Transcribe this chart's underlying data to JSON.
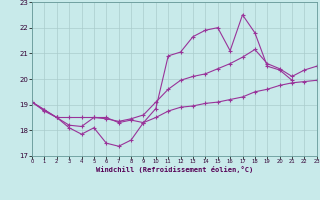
{
  "xlabel": "Windchill (Refroidissement éolien,°C)",
  "bg_color": "#c8eaea",
  "line_color": "#993399",
  "grid_color": "#aacccc",
  "ylim": [
    17,
    23
  ],
  "xlim": [
    0,
    23
  ],
  "yticks": [
    17,
    18,
    19,
    20,
    21,
    22,
    23
  ],
  "xticks": [
    0,
    1,
    2,
    3,
    4,
    5,
    6,
    7,
    8,
    9,
    10,
    11,
    12,
    13,
    14,
    15,
    16,
    17,
    18,
    19,
    20,
    21,
    22,
    23
  ],
  "series1_x": [
    0,
    1,
    2,
    3,
    4,
    5,
    6,
    7,
    8,
    9,
    10,
    11,
    12,
    13,
    14,
    15,
    16,
    17,
    18,
    19,
    20,
    21
  ],
  "series1_y": [
    19.1,
    18.8,
    18.5,
    18.1,
    17.85,
    18.1,
    17.5,
    17.38,
    17.62,
    18.3,
    18.85,
    20.9,
    21.05,
    21.65,
    21.9,
    22.0,
    21.1,
    22.5,
    21.8,
    20.5,
    20.35,
    19.95
  ],
  "series2_x": [
    0,
    1,
    2,
    3,
    4,
    5,
    6,
    7,
    8,
    9,
    10,
    11,
    12,
    13,
    14,
    15,
    16,
    17,
    18,
    19,
    20,
    21,
    22,
    23
  ],
  "series2_y": [
    19.1,
    18.8,
    18.5,
    18.2,
    18.15,
    18.5,
    18.45,
    18.35,
    18.45,
    18.6,
    19.1,
    19.6,
    19.95,
    20.1,
    20.2,
    20.4,
    20.6,
    20.85,
    21.15,
    20.6,
    20.4,
    20.1,
    20.35,
    20.5
  ],
  "series3_x": [
    0,
    1,
    2,
    3,
    4,
    5,
    6,
    7,
    8,
    9,
    10,
    11,
    12,
    13,
    14,
    15,
    16,
    17,
    18,
    19,
    20,
    21,
    22,
    23
  ],
  "series3_y": [
    19.1,
    18.75,
    18.5,
    18.5,
    18.5,
    18.5,
    18.5,
    18.3,
    18.4,
    18.3,
    18.5,
    18.75,
    18.9,
    18.95,
    19.05,
    19.1,
    19.2,
    19.3,
    19.5,
    19.6,
    19.75,
    19.85,
    19.9,
    19.95
  ]
}
